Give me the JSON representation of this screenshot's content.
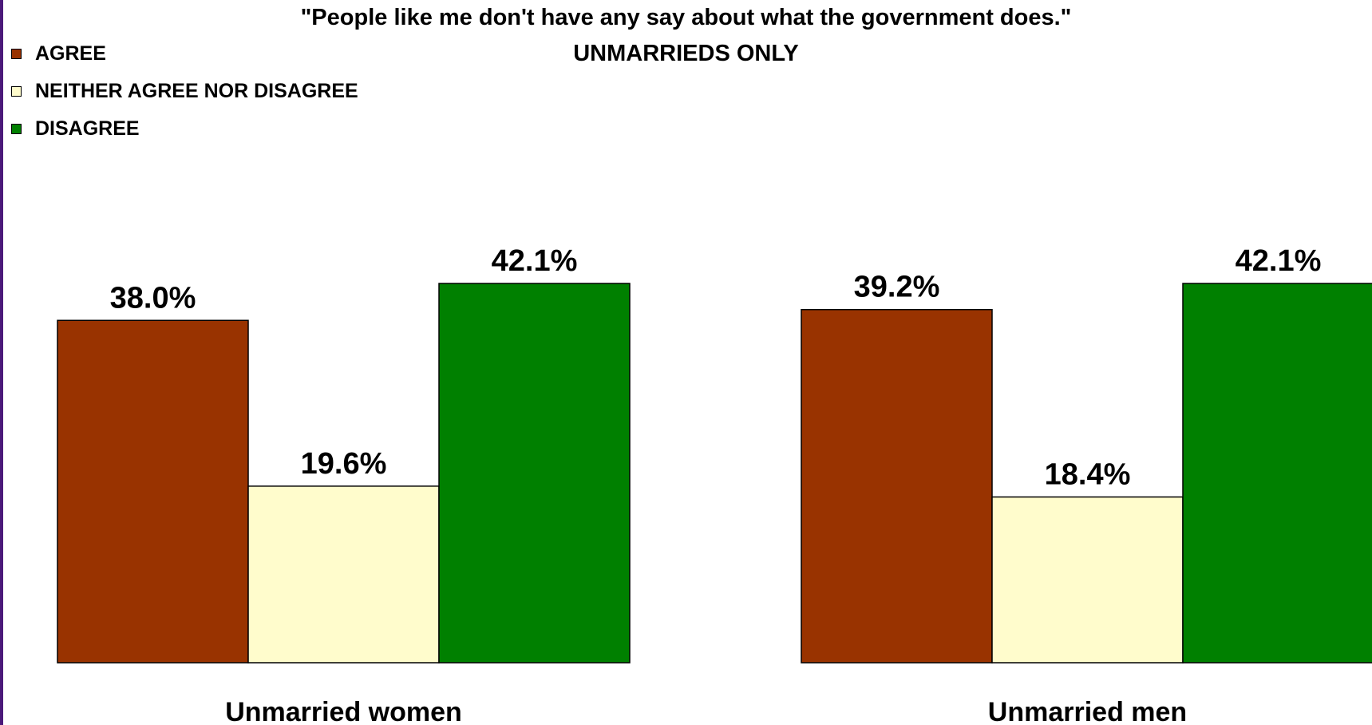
{
  "chart_data": {
    "type": "bar",
    "title": "\"People like me don't have any say about what the government does.\"",
    "subtitle": "UNMARRIEDS ONLY",
    "categories": [
      "Unmarried women",
      "Unmarried men"
    ],
    "series": [
      {
        "name": "AGREE",
        "color": "#993300",
        "values": [
          38.0,
          39.2
        ]
      },
      {
        "name": "NEITHER AGREE NOR DISAGREE",
        "color": "#FFFCCC",
        "values": [
          19.6,
          18.4
        ]
      },
      {
        "name": "DISAGREE",
        "color": "#008000",
        "values": [
          42.1,
          42.1
        ]
      }
    ],
    "value_labels": [
      [
        "38.0%",
        "39.2%"
      ],
      [
        "19.6%",
        "18.4%"
      ],
      [
        "42.1%",
        "42.1%"
      ]
    ],
    "ylim": [
      0,
      55
    ],
    "grid": false,
    "legend_position": "top-left",
    "xlabel": "",
    "ylabel": ""
  },
  "colors": {
    "edge_accent": "#4B1A7A"
  }
}
